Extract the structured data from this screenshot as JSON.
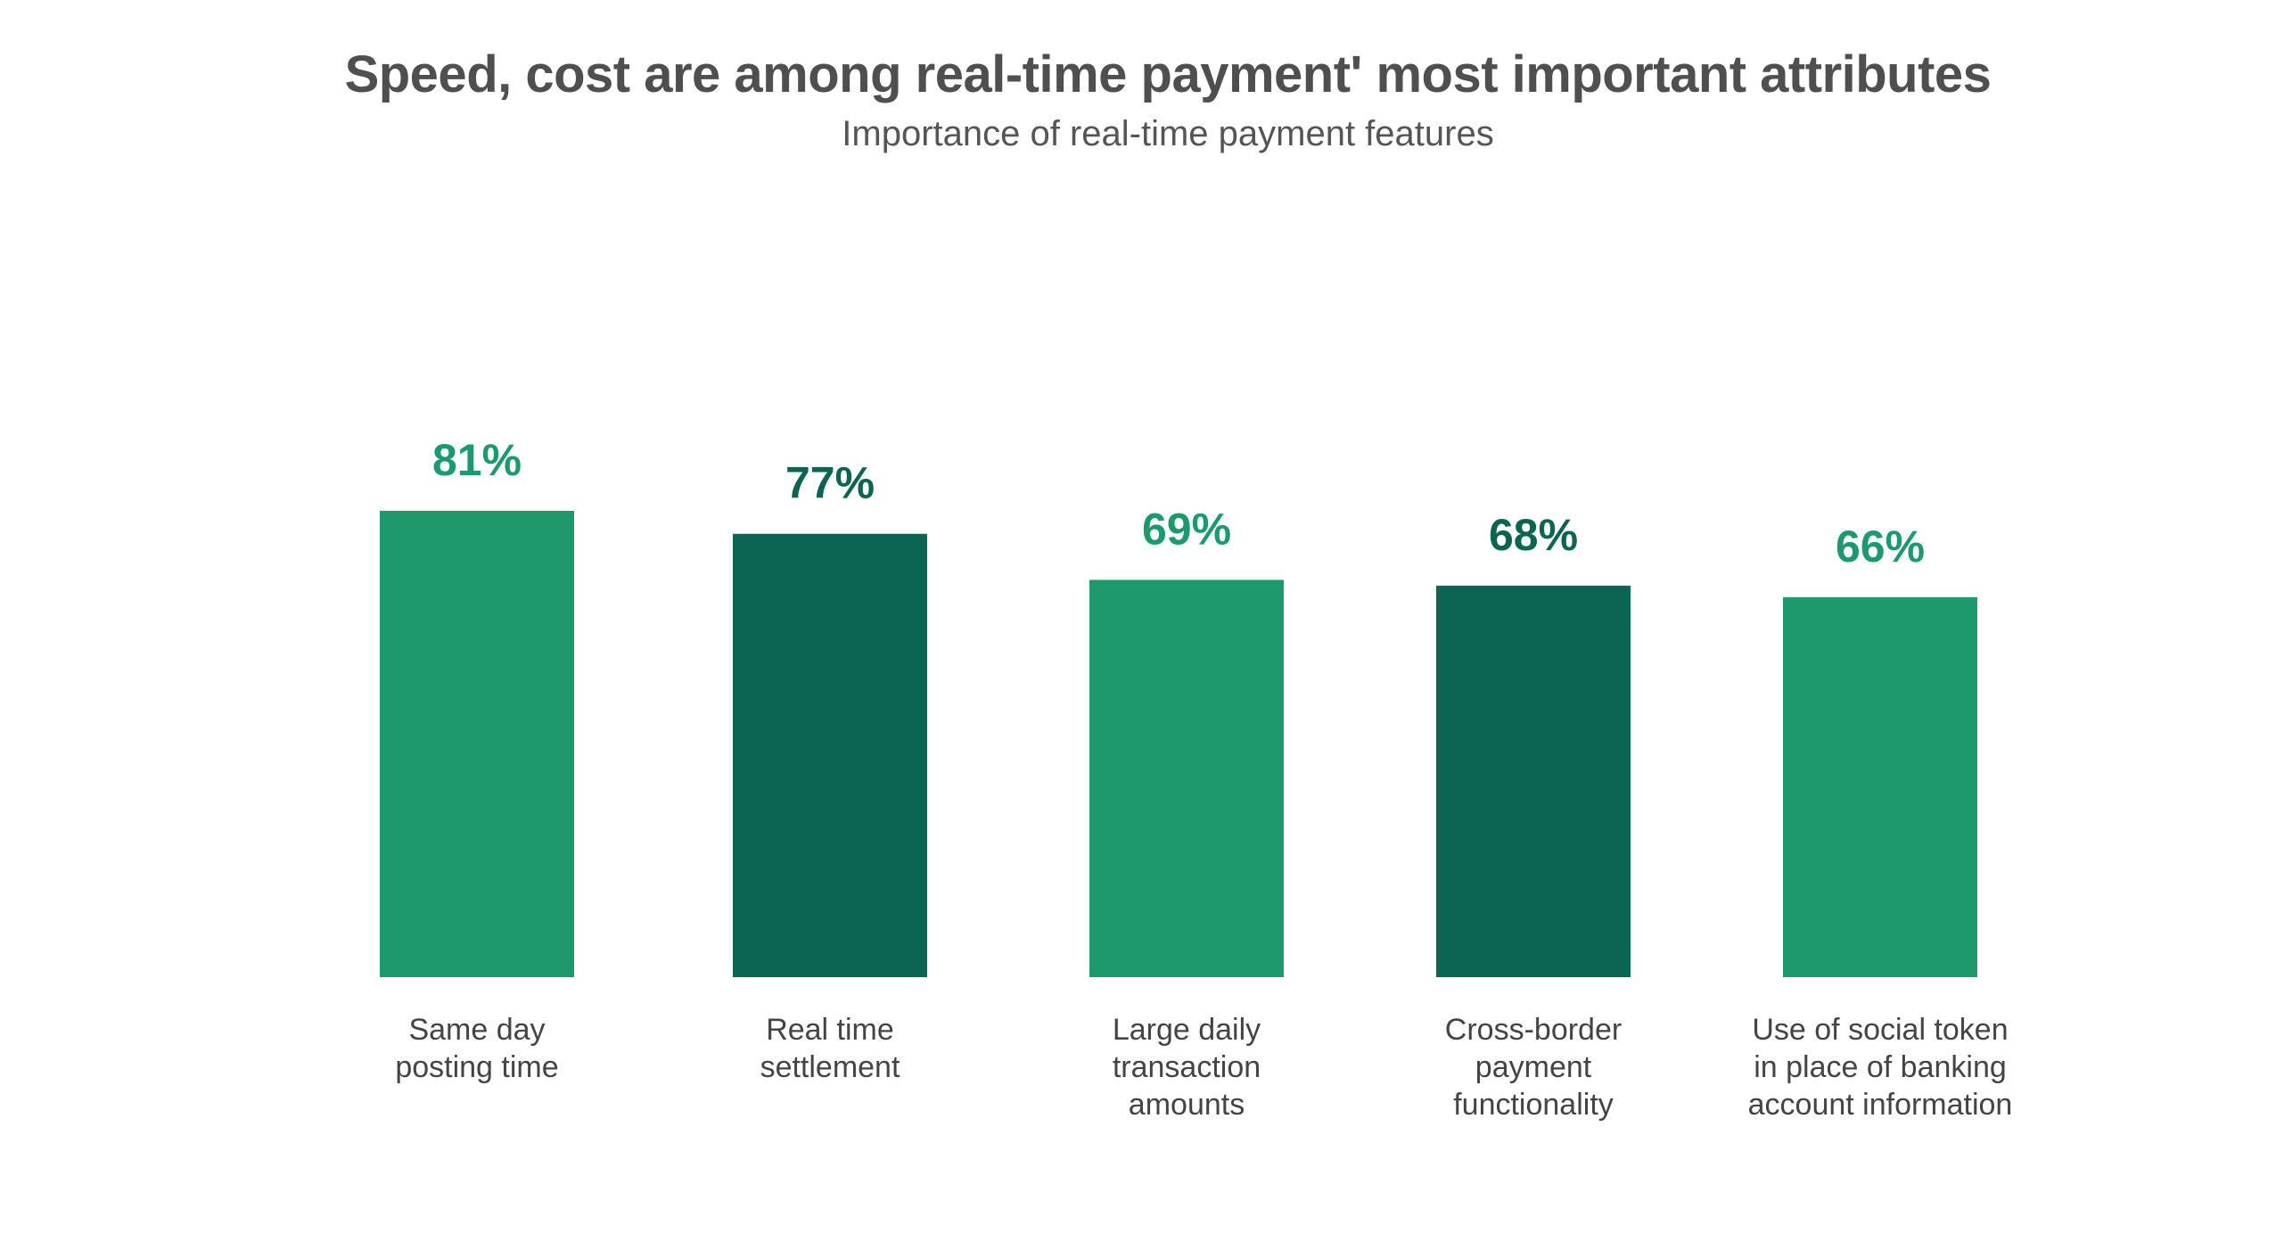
{
  "chart_data": {
    "type": "bar",
    "title": "Speed, cost are among real-time payment' most important attributes",
    "subtitle": "Importance of real-time payment features",
    "categories": [
      [
        "Same day",
        "posting time"
      ],
      [
        "Real time",
        "settlement"
      ],
      [
        "Large daily",
        "transaction",
        "amounts"
      ],
      [
        "Cross-border",
        "payment",
        "functionality"
      ],
      [
        "Use of social token",
        "in place of banking",
        "account information"
      ]
    ],
    "values": [
      81,
      77,
      69,
      68,
      66
    ],
    "value_labels": [
      "81%",
      "77%",
      "69%",
      "68%",
      "66%"
    ],
    "unit": "%",
    "ylim": [
      0,
      100
    ],
    "grid": false,
    "legend": "none",
    "colors": {
      "light": "#1c9a6c",
      "dark": "#0c6553",
      "title": "#4f4f4f",
      "subtitle": "#555555",
      "category": "#444444"
    },
    "bar_colors": [
      "light",
      "dark",
      "light",
      "dark",
      "light"
    ]
  }
}
